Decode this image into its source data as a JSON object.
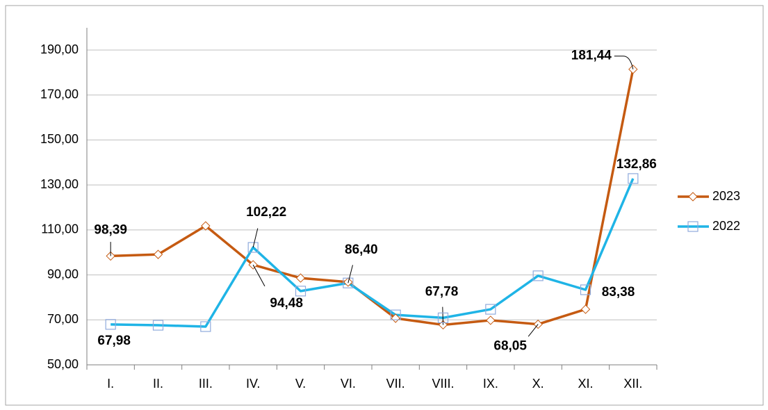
{
  "chart_data": {
    "type": "line",
    "categories": [
      "I.",
      "II.",
      "III.",
      "IV.",
      "V.",
      "VI.",
      "VII.",
      "VIII.",
      "IX.",
      "X.",
      "XI.",
      "XII."
    ],
    "series": [
      {
        "name": "2023",
        "color": "#c55a11",
        "marker": "diamond",
        "values": [
          98.39,
          99.1,
          111.8,
          94.48,
          88.6,
          86.8,
          70.7,
          67.78,
          69.8,
          68.05,
          74.7,
          181.44
        ],
        "value_labels": [
          "98,39",
          null,
          null,
          "94,48",
          null,
          null,
          null,
          "67,78",
          null,
          "68,05",
          null,
          "181,44"
        ]
      },
      {
        "name": "2022",
        "color": "#1fb4e6",
        "marker": "square",
        "values": [
          67.98,
          67.6,
          67.0,
          102.22,
          82.8,
          86.4,
          72.2,
          70.9,
          74.7,
          89.6,
          83.38,
          132.86
        ],
        "value_labels": [
          "67,98",
          null,
          null,
          "102,22",
          null,
          "86,40",
          null,
          null,
          null,
          null,
          "83,38",
          "132,86"
        ]
      }
    ],
    "ylim": [
      50,
      190
    ],
    "yticks": [
      {
        "value": 50,
        "label": "50,00"
      },
      {
        "value": 70,
        "label": "70,00"
      },
      {
        "value": 90,
        "label": "90,00"
      },
      {
        "value": 110,
        "label": "110,00"
      },
      {
        "value": 130,
        "label": "130,00"
      },
      {
        "value": 150,
        "label": "150,00"
      },
      {
        "value": 170,
        "label": "170,00"
      },
      {
        "value": 190,
        "label": "190,00"
      }
    ],
    "grid": true,
    "legend": "right"
  }
}
